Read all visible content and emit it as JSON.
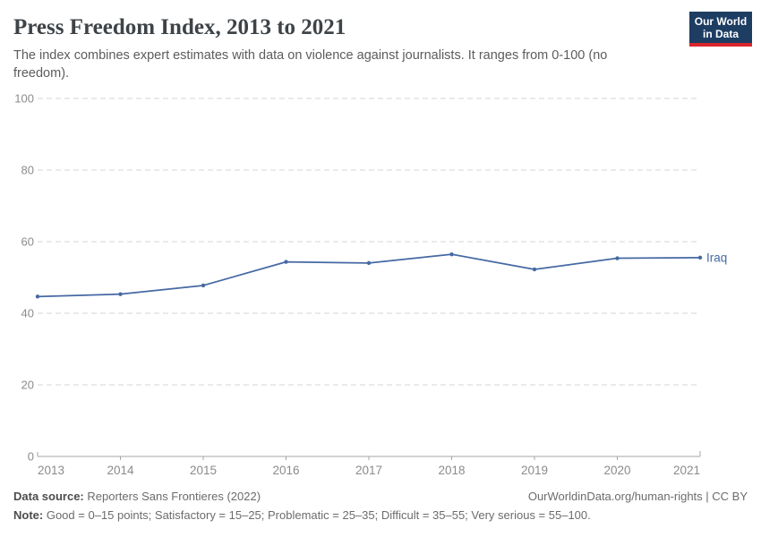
{
  "header": {
    "title": "Press Freedom Index, 2013 to 2021",
    "subtitle": "The index combines expert estimates with data on violence against journalists. It ranges from 0-100 (no freedom).",
    "logo_line1": "Our World",
    "logo_line2": "in Data"
  },
  "chart_data": {
    "type": "line",
    "title": "Press Freedom Index, 2013 to 2021",
    "x": [
      2013,
      2014,
      2015,
      2016,
      2017,
      2018,
      2019,
      2020,
      2021
    ],
    "series": [
      {
        "name": "Iraq",
        "color": "#4569a3",
        "values": [
          44.67,
          45.34,
          47.76,
          54.35,
          54.03,
          56.46,
          52.25,
          55.37,
          55.54
        ]
      }
    ],
    "ylim": [
      0,
      100
    ],
    "y_ticks": [
      0,
      20,
      40,
      60,
      80,
      100
    ],
    "grid": "horizontal-dashed",
    "legend": "end-of-line-label",
    "end_label": "Iraq",
    "xlabel": "",
    "ylabel": ""
  },
  "colors": {
    "line": "#4569a3",
    "grid": "#d5d5d5",
    "axis": "#a5a5a5",
    "tick_label": "#8b8b8b",
    "logo_bg": "#1d3d63",
    "logo_accent": "#d8262b"
  },
  "footer": {
    "source_label": "Data source:",
    "source_value": "Reporters Sans Frontieres (2022)",
    "link_text": "OurWorldinData.org/human-rights | CC BY",
    "note_label": "Note:",
    "note_value": "Good = 0–15 points; Satisfactory = 15–25; Problematic = 25–35; Difficult = 35–55; Very serious = 55–100."
  }
}
